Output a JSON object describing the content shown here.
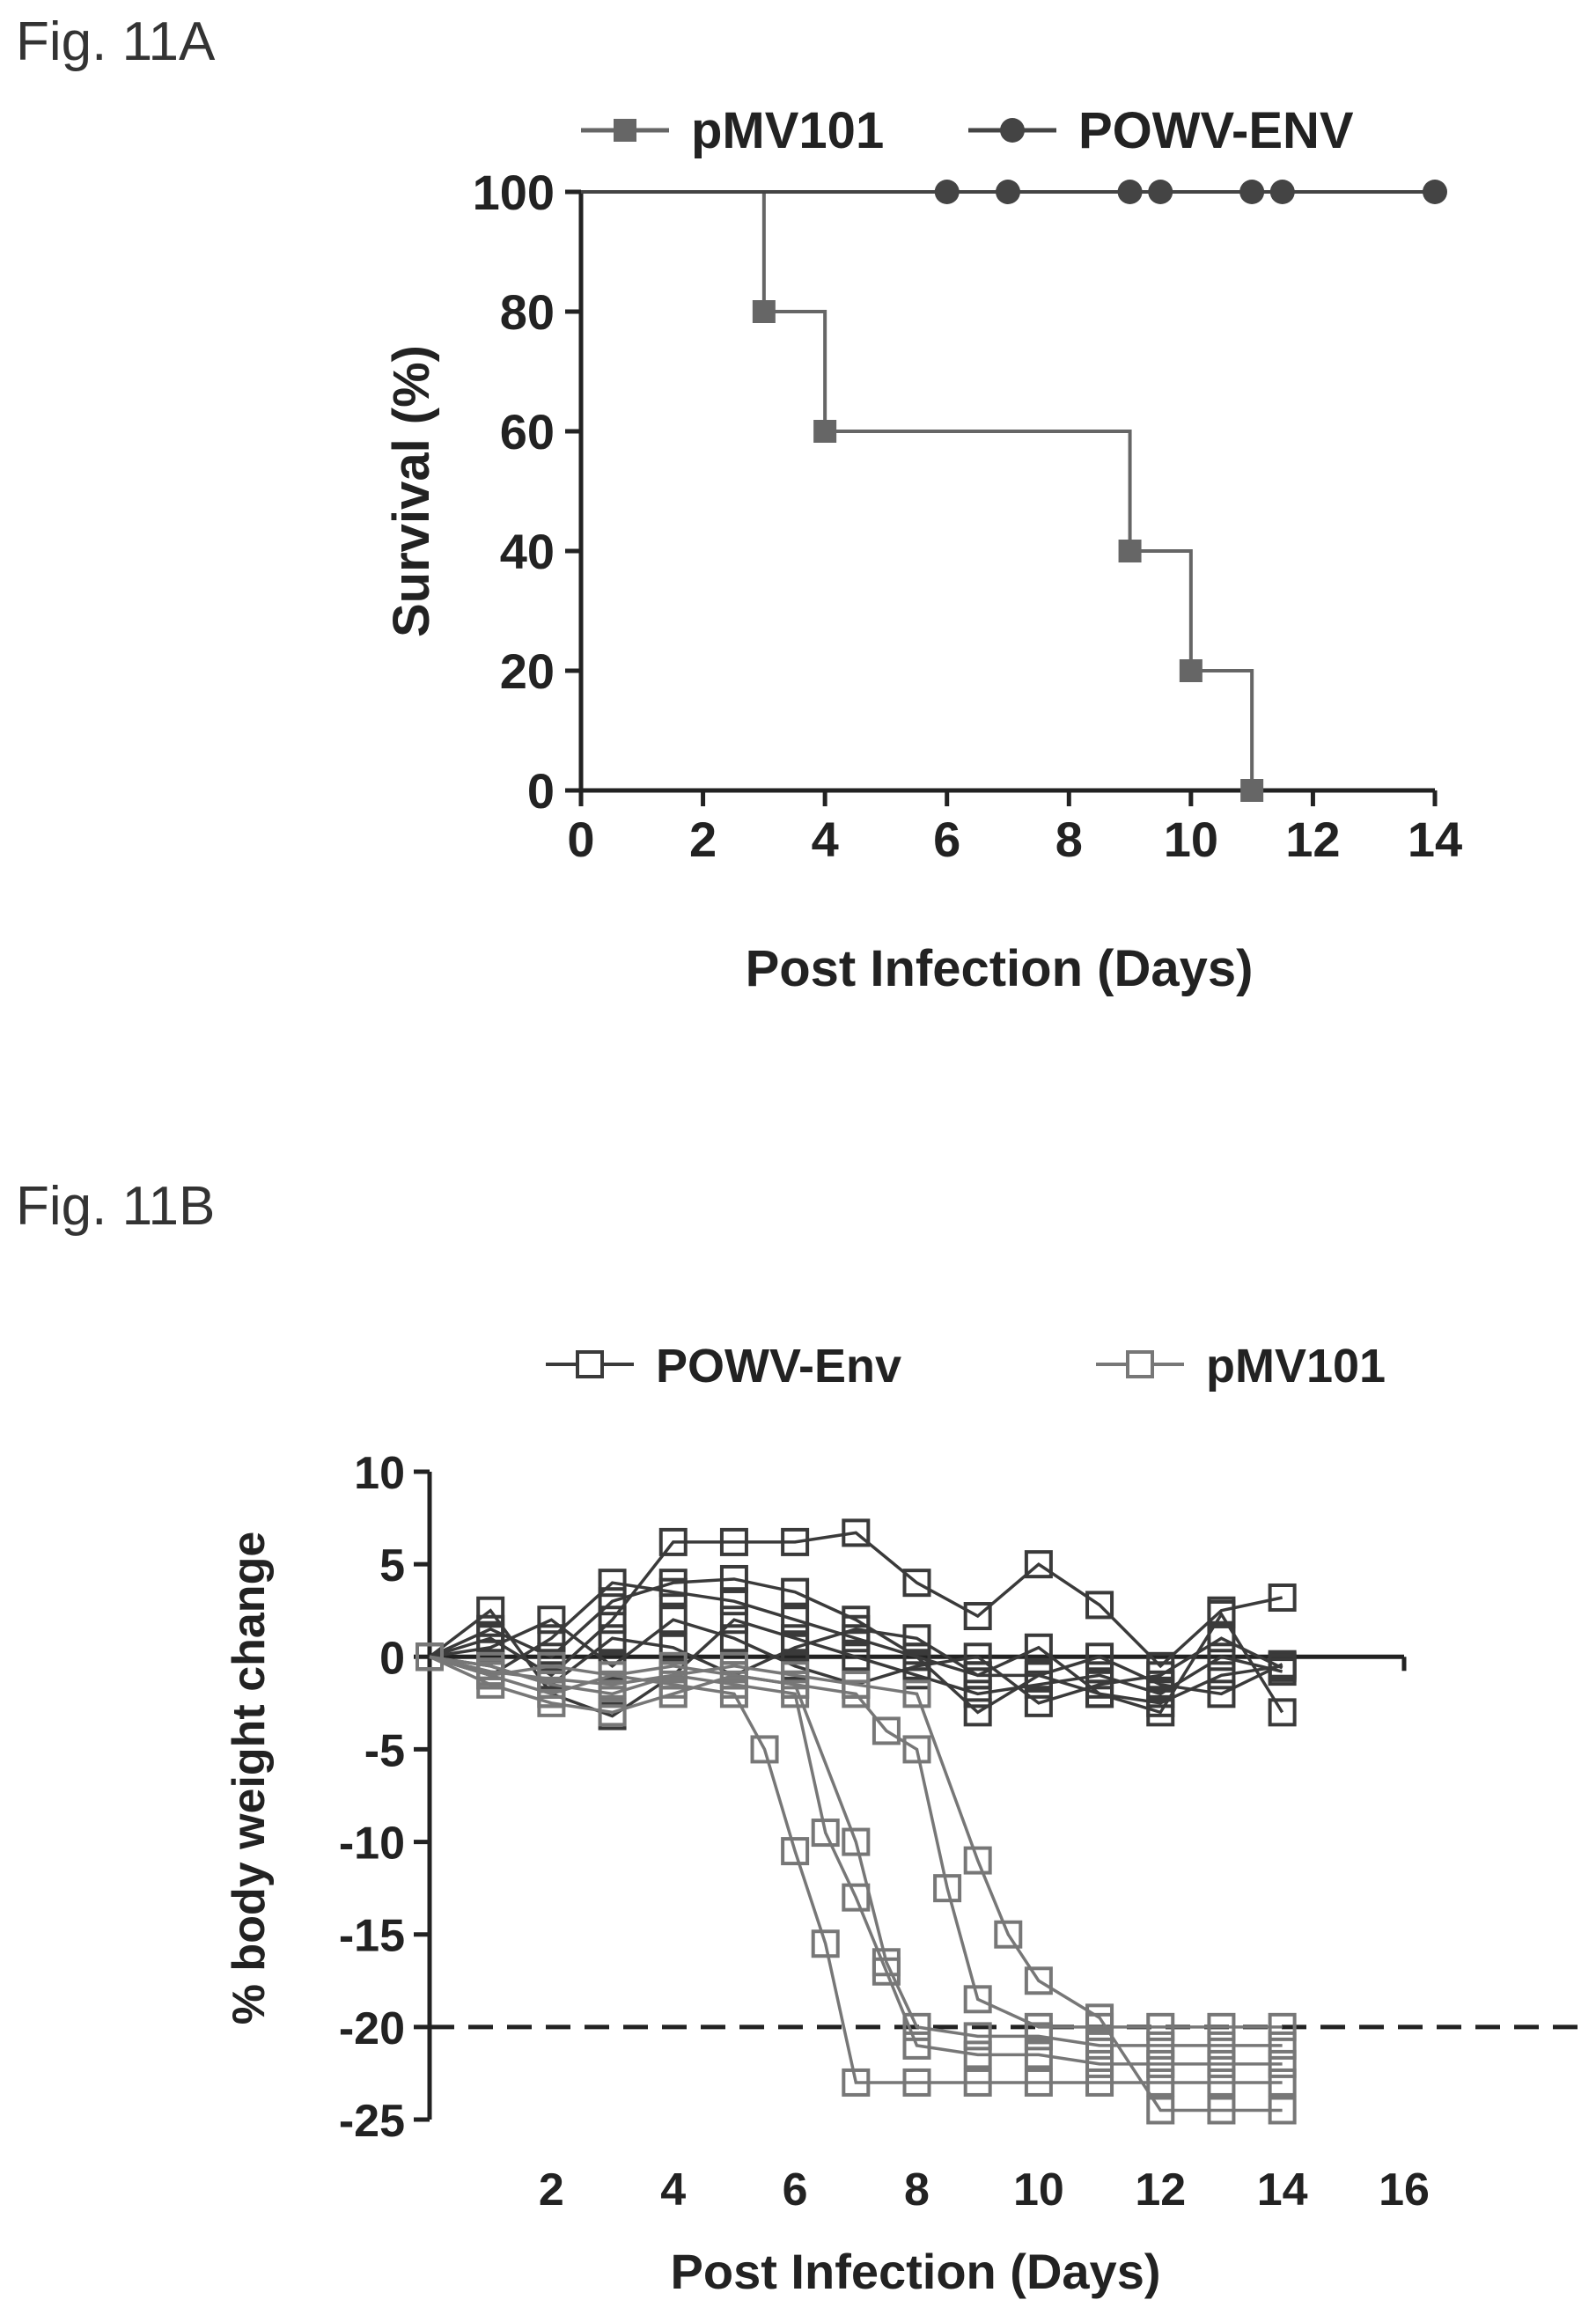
{
  "figures": {
    "a_label": "Fig. 11A",
    "b_label": "Fig. 11B"
  },
  "colors": {
    "pmv101_a": "#666666",
    "powv_a": "#444444",
    "powv_b": "#3a3a3a",
    "pmv101_b": "#777777",
    "axis": "#222222"
  },
  "chart_data": [
    {
      "type": "line",
      "subtype": "kaplan-meier-survival",
      "title": "",
      "xlabel": "Post Infection (Days)",
      "ylabel": "Survival (%)",
      "xlim": [
        0,
        14
      ],
      "ylim": [
        0,
        100
      ],
      "xticks": [
        0,
        2,
        4,
        6,
        8,
        10,
        12,
        14
      ],
      "yticks": [
        0,
        20,
        40,
        60,
        80,
        100
      ],
      "legend_position": "top",
      "series": [
        {
          "name": "pMV101",
          "marker": "square",
          "steps": [
            [
              0,
              100
            ],
            [
              3,
              80
            ],
            [
              4,
              60
            ],
            [
              9,
              40
            ],
            [
              10,
              20
            ],
            [
              11,
              0
            ]
          ],
          "points": [
            [
              3,
              80
            ],
            [
              4,
              60
            ],
            [
              9,
              40
            ],
            [
              10,
              20
            ],
            [
              11,
              0
            ]
          ]
        },
        {
          "name": "POWV-ENV",
          "marker": "circle",
          "steps": [
            [
              0,
              100
            ],
            [
              14,
              100
            ]
          ],
          "points": [
            [
              6,
              100
            ],
            [
              7,
              100
            ],
            [
              9,
              100
            ],
            [
              9.5,
              100
            ],
            [
              11,
              100
            ],
            [
              11.5,
              100
            ],
            [
              14,
              100
            ]
          ]
        }
      ]
    },
    {
      "type": "line",
      "subtype": "individual-weight-curves",
      "title": "",
      "xlabel": "Post Infection (Days)",
      "ylabel": "% body weight change",
      "xlim": [
        0,
        16
      ],
      "ylim": [
        -25,
        10
      ],
      "xticks": [
        2,
        4,
        6,
        8,
        10,
        12,
        14,
        16
      ],
      "yticks": [
        10,
        5,
        0,
        -5,
        -10,
        -15,
        -20,
        -25
      ],
      "threshold_line": -20,
      "legend_position": "top",
      "series": [
        {
          "name": "POWV-Env",
          "marker": "open-square",
          "curves": [
            [
              [
                0,
                0
              ],
              [
                1,
                1
              ],
              [
                2,
                -1
              ],
              [
                3,
                2
              ],
              [
                4,
                6.2
              ],
              [
                5,
                6.2
              ],
              [
                6,
                6.2
              ],
              [
                7,
                6.7
              ],
              [
                8,
                4
              ],
              [
                9,
                2.2
              ],
              [
                10,
                5
              ],
              [
                11,
                2.8
              ],
              [
                12,
                -0.5
              ],
              [
                13,
                2.5
              ],
              [
                14,
                3.2
              ]
            ],
            [
              [
                0,
                0
              ],
              [
                1,
                1.5
              ],
              [
                2,
                0
              ],
              [
                3,
                3
              ],
              [
                4,
                4
              ],
              [
                5,
                4.2
              ],
              [
                6,
                3.5
              ],
              [
                7,
                2
              ],
              [
                8,
                0
              ],
              [
                9,
                -3
              ],
              [
                10,
                -1
              ],
              [
                11,
                -2
              ],
              [
                12,
                -3
              ],
              [
                13,
                2.3
              ],
              [
                14,
                -3
              ]
            ],
            [
              [
                0,
                0
              ],
              [
                1,
                -1
              ],
              [
                2,
                1
              ],
              [
                3,
                4
              ],
              [
                4,
                3.5
              ],
              [
                5,
                3
              ],
              [
                6,
                2
              ],
              [
                7,
                1
              ],
              [
                8,
                0
              ],
              [
                9,
                -1
              ],
              [
                10,
                0.5
              ],
              [
                11,
                -2
              ],
              [
                12,
                -2.5
              ],
              [
                13,
                -1
              ],
              [
                14,
                -0.5
              ]
            ],
            [
              [
                0,
                0
              ],
              [
                1,
                2.5
              ],
              [
                2,
                -2
              ],
              [
                3,
                -3.2
              ],
              [
                4,
                -1
              ],
              [
                5,
                2
              ],
              [
                6,
                1
              ],
              [
                7,
                0
              ],
              [
                8,
                -1
              ],
              [
                9,
                -2
              ],
              [
                10,
                -1.5
              ],
              [
                11,
                -1
              ],
              [
                12,
                -2
              ],
              [
                13,
                0
              ],
              [
                14,
                -0.8
              ]
            ],
            [
              [
                0,
                0
              ],
              [
                1,
                0.5
              ],
              [
                2,
                2
              ],
              [
                3,
                -0.5
              ],
              [
                4,
                2
              ],
              [
                5,
                1
              ],
              [
                6,
                -0.5
              ],
              [
                7,
                -1.5
              ],
              [
                8,
                -0.5
              ],
              [
                9,
                0
              ],
              [
                10,
                -2.5
              ],
              [
                11,
                -1.5
              ],
              [
                12,
                -1
              ],
              [
                13,
                1
              ],
              [
                14,
                -0.6
              ]
            ],
            [
              [
                0,
                0
              ],
              [
                1,
                -0.5
              ],
              [
                2,
                -1.5
              ],
              [
                3,
                1
              ],
              [
                4,
                0.5
              ],
              [
                5,
                -1
              ],
              [
                6,
                0.5
              ],
              [
                7,
                1.5
              ],
              [
                8,
                1
              ],
              [
                9,
                -1
              ],
              [
                10,
                -1
              ],
              [
                11,
                0
              ],
              [
                12,
                -1.5
              ],
              [
                13,
                -2
              ],
              [
                14,
                -0.4
              ]
            ]
          ]
        },
        {
          "name": "pMV101",
          "marker": "open-square",
          "curves": [
            [
              [
                0,
                0
              ],
              [
                1,
                -1
              ],
              [
                2,
                -2
              ],
              [
                3,
                -1
              ],
              [
                4,
                -1.5
              ],
              [
                5,
                -2
              ],
              [
                5.5,
                -5
              ],
              [
                6,
                -10.5
              ],
              [
                6.5,
                -15.5
              ],
              [
                7,
                -23
              ],
              [
                8,
                -23
              ],
              [
                9,
                -23
              ],
              [
                10,
                -23
              ],
              [
                11,
                -23
              ],
              [
                12,
                -23
              ],
              [
                13,
                -23
              ],
              [
                14,
                -23
              ]
            ],
            [
              [
                0,
                0
              ],
              [
                1,
                -0.5
              ],
              [
                2,
                -1.5
              ],
              [
                3,
                -2
              ],
              [
                4,
                -1
              ],
              [
                5,
                -1.5
              ],
              [
                6,
                -2
              ],
              [
                6.5,
                -9.5
              ],
              [
                7,
                -13
              ],
              [
                7.5,
                -17
              ],
              [
                8,
                -21
              ],
              [
                9,
                -21.5
              ],
              [
                10,
                -21.5
              ],
              [
                11,
                -22
              ],
              [
                12,
                -22
              ],
              [
                13,
                -22
              ],
              [
                14,
                -22
              ]
            ],
            [
              [
                0,
                0
              ],
              [
                1,
                -1
              ],
              [
                2,
                -0.5
              ],
              [
                3,
                -1
              ],
              [
                4,
                -0.5
              ],
              [
                5,
                -1
              ],
              [
                6,
                -1.5
              ],
              [
                7,
                -10
              ],
              [
                7.5,
                -16.5
              ],
              [
                8,
                -20
              ],
              [
                9,
                -20.5
              ],
              [
                10,
                -20.5
              ],
              [
                11,
                -21
              ],
              [
                12,
                -21
              ],
              [
                13,
                -21
              ],
              [
                14,
                -21
              ]
            ],
            [
              [
                0,
                0
              ],
              [
                1,
                -1.5
              ],
              [
                2,
                -2.5
              ],
              [
                3,
                -3
              ],
              [
                4,
                -2
              ],
              [
                5,
                -1
              ],
              [
                6,
                -1.5
              ],
              [
                7,
                -2
              ],
              [
                7.5,
                -4
              ],
              [
                8,
                -5
              ],
              [
                8.5,
                -12.5
              ],
              [
                9,
                -18.5
              ],
              [
                10,
                -20
              ],
              [
                11,
                -20
              ],
              [
                12,
                -20
              ],
              [
                13,
                -20
              ],
              [
                14,
                -20
              ]
            ],
            [
              [
                0,
                0
              ],
              [
                1,
                -0.8
              ],
              [
                2,
                -1.2
              ],
              [
                3,
                -1.5
              ],
              [
                4,
                -1
              ],
              [
                5,
                -0.5
              ],
              [
                6,
                -1
              ],
              [
                7,
                -1.5
              ],
              [
                8,
                -2
              ],
              [
                9,
                -11
              ],
              [
                9.5,
                -15
              ],
              [
                10,
                -17.5
              ],
              [
                11,
                -19.5
              ],
              [
                12,
                -24.5
              ],
              [
                13,
                -24.5
              ],
              [
                14,
                -24.5
              ]
            ]
          ]
        }
      ]
    }
  ]
}
